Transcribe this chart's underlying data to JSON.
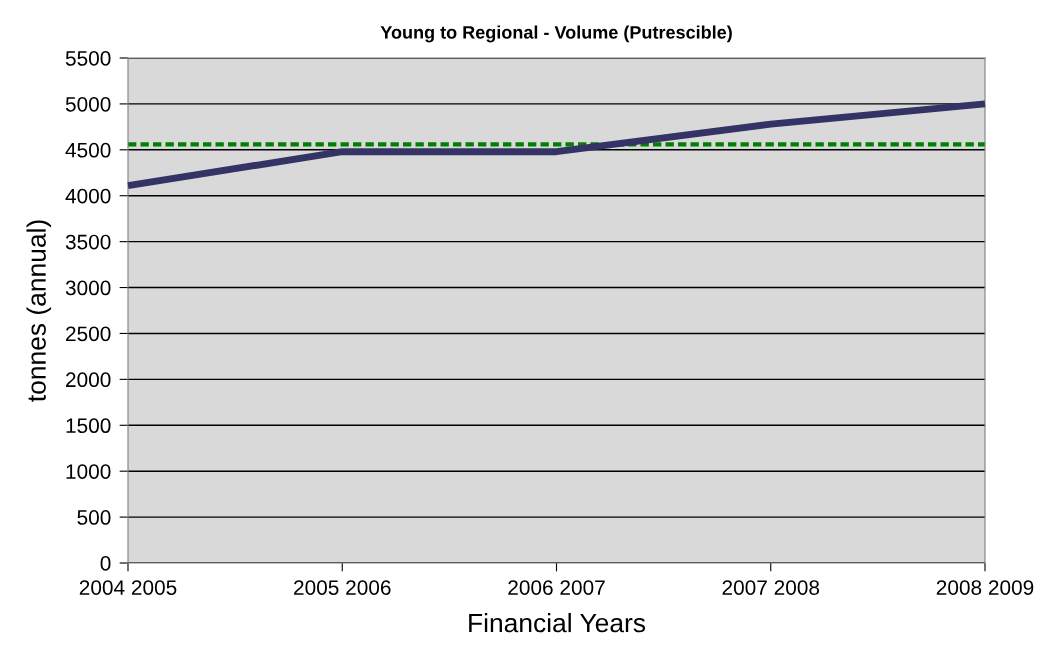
{
  "chart_data": {
    "type": "line",
    "title": "Young to Regional - Volume (Putrescible)",
    "xlabel": "Financial Years",
    "ylabel": "tonnes (annual)",
    "categories": [
      "2004 2005",
      "2005 2006",
      "2006 2007",
      "2007 2008",
      "2008 2009"
    ],
    "series": [
      {
        "color": "#333366",
        "values": [
          4110,
          4480,
          4480,
          4780,
          5000
        ]
      }
    ],
    "ref_lines": [
      {
        "axis": "y",
        "value": 4560,
        "color": "#008000",
        "line_style": "dashed"
      }
    ],
    "ylim": [
      0,
      5500
    ],
    "yticks": [
      0,
      500,
      1000,
      1500,
      2000,
      2500,
      3000,
      3500,
      4000,
      4500,
      5000,
      5500
    ],
    "grid": "y",
    "marker": "none",
    "line_style": "solid"
  }
}
